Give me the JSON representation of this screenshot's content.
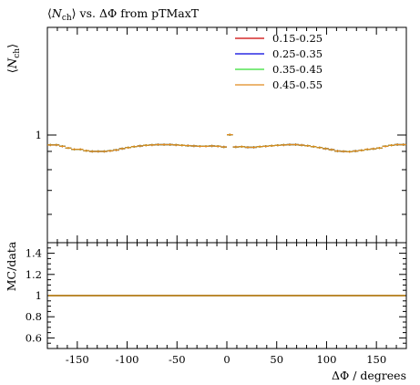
{
  "chart_data": [
    {
      "type": "line",
      "title_parts": {
        "open": "⟨",
        "var": "N",
        "sub": "ch",
        "close": "⟩",
        "rest": " vs. ΔΦ from pTMaxT"
      },
      "ylabel_parts": {
        "open": "⟨",
        "var": "N",
        "sub": "ch",
        "close": "⟩"
      },
      "xlabel": "",
      "xlim": [
        -180,
        180
      ],
      "ylim": [
        0.5,
        2.0
      ],
      "yscale": "log",
      "yticks": [
        {
          "value": 1,
          "label": "1"
        }
      ],
      "legend_position": "top-right",
      "series": [
        {
          "name": "0.15-0.25",
          "color": "#cc0000"
        },
        {
          "name": "0.25-0.35",
          "color": "#0000dd"
        },
        {
          "name": "0.35-0.45",
          "color": "#33dd33"
        },
        {
          "name": "0.45-0.55",
          "color": "#e08a1e"
        }
      ],
      "x": [
        -177,
        -171,
        -165,
        -159,
        -153,
        -147,
        -141,
        -135,
        -129,
        -123,
        -117,
        -111,
        -105,
        -99,
        -93,
        -87,
        -81,
        -75,
        -69,
        -63,
        -57,
        -51,
        -45,
        -39,
        -33,
        -27,
        -21,
        -15,
        -9,
        -3,
        3,
        9,
        15,
        21,
        27,
        33,
        39,
        45,
        51,
        57,
        63,
        69,
        75,
        81,
        87,
        93,
        99,
        105,
        111,
        117,
        123,
        129,
        135,
        141,
        147,
        153,
        159,
        165,
        171,
        177
      ],
      "values": [
        0.938,
        0.938,
        0.93,
        0.92,
        0.912,
        0.912,
        0.904,
        0.9,
        0.9,
        0.9,
        0.903,
        0.908,
        0.916,
        0.922,
        0.928,
        0.932,
        0.936,
        0.938,
        0.94,
        0.94,
        0.94,
        0.938,
        0.936,
        0.934,
        0.932,
        0.93,
        0.93,
        0.932,
        0.93,
        0.926,
        1.002,
        0.926,
        0.928,
        0.924,
        0.924,
        0.928,
        0.93,
        0.933,
        0.936,
        0.938,
        0.94,
        0.94,
        0.937,
        0.933,
        0.928,
        0.922,
        0.916,
        0.91,
        0.902,
        0.9,
        0.898,
        0.902,
        0.906,
        0.912,
        0.915,
        0.92,
        0.93,
        0.936,
        0.94,
        0.94
      ]
    },
    {
      "type": "line",
      "ylabel": "MC/data",
      "xlabel": "ΔΦ / degrees",
      "xlim": [
        -180,
        180
      ],
      "ylim": [
        0.5,
        1.5
      ],
      "xticks": [
        -150,
        -100,
        -50,
        0,
        50,
        100,
        150
      ],
      "xtick_labels": [
        "-150",
        "-100",
        "-50",
        "0",
        "50",
        "100",
        "150"
      ],
      "yticks": [
        0.6,
        0.8,
        1.0,
        1.2,
        1.4
      ],
      "ytick_labels": [
        "0.6",
        "0.8",
        "1",
        "1.2",
        "1.4"
      ],
      "reference_value": 1.0
    }
  ]
}
